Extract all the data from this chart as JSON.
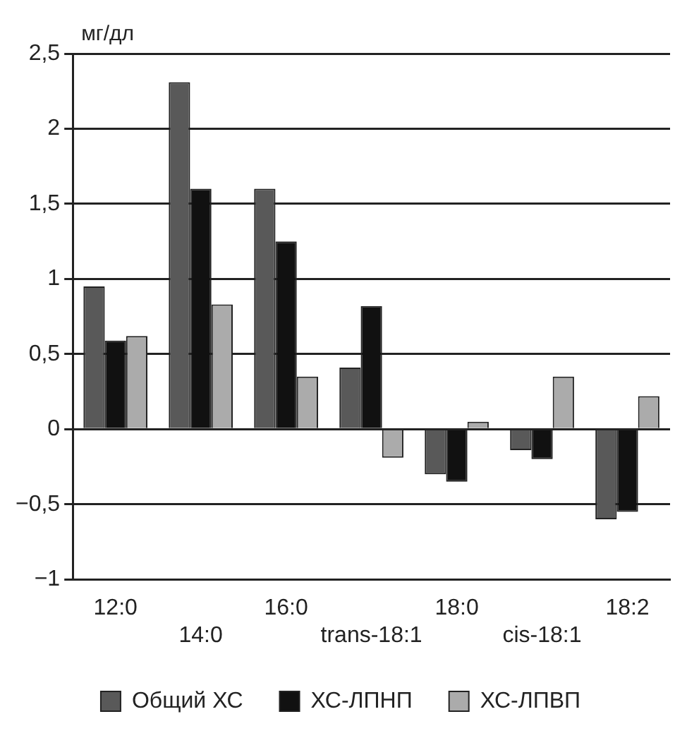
{
  "chart_data": {
    "type": "bar",
    "ylabel": "мг/дл",
    "categories": [
      "12:0",
      "14:0",
      "16:0",
      "trans-18:1",
      "18:0",
      "cis-18:1",
      "18:2"
    ],
    "series": [
      {
        "name": "Общий ХС",
        "color": "#595959",
        "values": [
          0.95,
          2.31,
          1.6,
          0.41,
          -0.3,
          -0.14,
          -0.6
        ]
      },
      {
        "name": "ХС-ЛПНП",
        "color": "#111111",
        "values": [
          0.59,
          1.6,
          1.25,
          0.82,
          -0.35,
          -0.2,
          -0.55
        ]
      },
      {
        "name": "ХС-ЛПВП",
        "color": "#ababab",
        "values": [
          0.62,
          0.83,
          0.35,
          -0.19,
          0.05,
          0.35,
          0.22
        ]
      }
    ],
    "ylim": [
      -1,
      2.5
    ],
    "yticks": [
      {
        "value": -1,
        "label": "−1"
      },
      {
        "value": -0.5,
        "label": "−0,5"
      },
      0,
      {
        "value": 0.5,
        "label": "0,5"
      },
      1,
      {
        "value": 1.5,
        "label": "1,5"
      },
      2,
      {
        "value": 2.5,
        "label": "2,5"
      }
    ],
    "grid": "y",
    "legend": "bottom"
  }
}
